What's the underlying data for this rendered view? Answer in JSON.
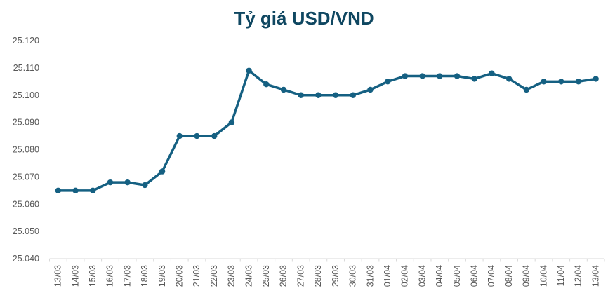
{
  "chart_data": {
    "type": "line",
    "title": "Tỷ giá USD/VND",
    "series_name": "USD/VND",
    "categories": [
      "13/03",
      "14/03",
      "15/03",
      "16/03",
      "17/03",
      "18/03",
      "19/03",
      "20/03",
      "21/03",
      "22/03",
      "23/03",
      "24/03",
      "25/03",
      "26/03",
      "27/03",
      "28/03",
      "29/03",
      "30/03",
      "31/03",
      "01/04",
      "02/04",
      "03/04",
      "04/04",
      "05/04",
      "06/04",
      "07/04",
      "08/04",
      "09/04",
      "10/04",
      "11/04",
      "12/04",
      "13/04"
    ],
    "values": [
      25065,
      25065,
      25065,
      25068,
      25068,
      25067,
      25072,
      25085,
      25085,
      25085,
      25090,
      25109,
      25104,
      25102,
      25100,
      25100,
      25100,
      25100,
      25102,
      25105,
      25107,
      25107,
      25107,
      25107,
      25106,
      25108,
      25106,
      25102,
      25105,
      25105,
      25105,
      25106
    ],
    "ylim": [
      25040,
      25120
    ],
    "ytick_step": 10,
    "ytick_labels": [
      "25.040",
      "25.050",
      "25.060",
      "25.070",
      "25.080",
      "25.090",
      "25.100",
      "25.110",
      "25.120"
    ],
    "xlabel": "",
    "ylabel": "",
    "grid": false,
    "legend": false,
    "x_label_rotation": -90,
    "marker": "circle",
    "colors": {
      "line": "#156082",
      "marker": "#156082",
      "title": "#0F4761",
      "axis_text": "#595959",
      "axis_line": "#D9D9D9"
    }
  }
}
